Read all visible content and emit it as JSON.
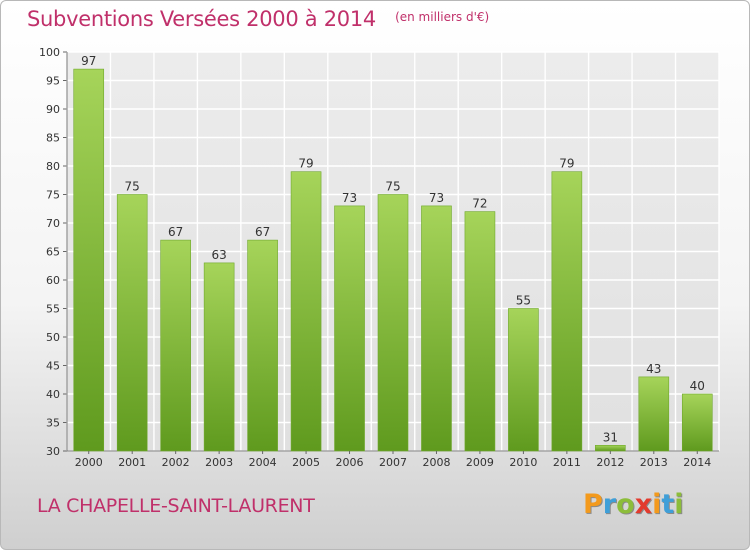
{
  "header": {
    "title": "Subventions Versées 2000 à 2014",
    "subtitle": "(en milliers d'€)"
  },
  "footer": {
    "commune": "LA CHAPELLE-SAINT-LAURENT",
    "logo_letters": [
      "P",
      "r",
      "o",
      "x",
      "i",
      "t",
      "i"
    ],
    "logo_colors": [
      "#f39a1d",
      "#3f9fd8",
      "#8cbd3a",
      "#e33b2e",
      "#f39a1d",
      "#3f9fd8",
      "#8cbd3a"
    ]
  },
  "chart_data": {
    "type": "bar",
    "categories": [
      "2000",
      "2001",
      "2002",
      "2003",
      "2004",
      "2005",
      "2006",
      "2007",
      "2008",
      "2009",
      "2010",
      "2011",
      "2012",
      "2013",
      "2014"
    ],
    "values": [
      97,
      75,
      67,
      63,
      67,
      79,
      73,
      75,
      73,
      72,
      55,
      79,
      31,
      43,
      40
    ],
    "ylim": [
      30,
      100
    ],
    "yticks": [
      30,
      35,
      40,
      45,
      50,
      55,
      60,
      65,
      70,
      75,
      80,
      85,
      90,
      95,
      100
    ],
    "grid": true,
    "bar_color": "#8cc63f",
    "bar_color_dark": "#5f9a1e"
  }
}
